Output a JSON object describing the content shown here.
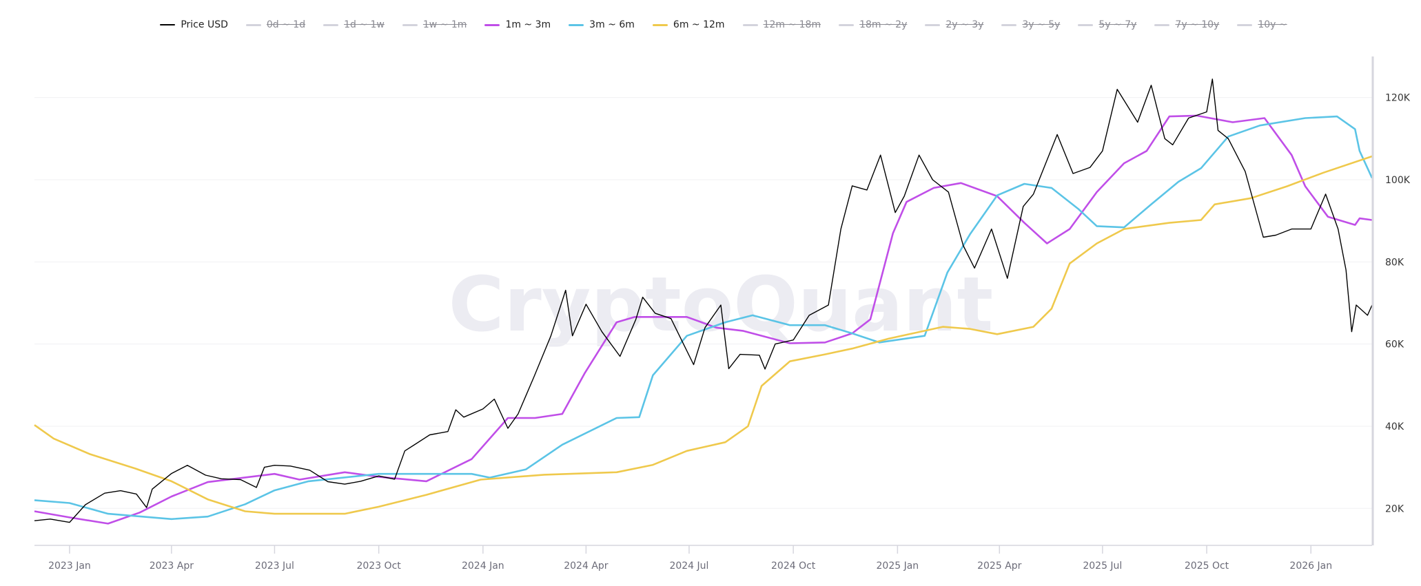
{
  "watermark": "CryptoQuant",
  "chart_data": {
    "type": "line",
    "xlim": [
      "2022-12-01",
      "2026-02-24"
    ],
    "ylim": [
      11000,
      130000
    ],
    "y_axis_side": "right",
    "grid": "horizontal",
    "legend_placement": "top",
    "x_ticks": [
      "2023 Jan",
      "2023 Apr",
      "2023 Jul",
      "2023 Oct",
      "2024 Jan",
      "2024 Apr",
      "2024 Jul",
      "2024 Oct",
      "2025 Jan",
      "2025 Apr",
      "2025 Jul",
      "2025 Oct",
      "2026 Jan"
    ],
    "x_tick_dates": [
      "2023-01-01",
      "2023-04-01",
      "2023-07-01",
      "2023-10-01",
      "2024-01-01",
      "2024-04-01",
      "2024-07-01",
      "2024-10-01",
      "2025-01-01",
      "2025-04-01",
      "2025-07-01",
      "2025-10-01",
      "2026-01-01"
    ],
    "y_ticks": [
      20000,
      40000,
      60000,
      80000,
      100000,
      120000
    ],
    "y_tick_labels": [
      "20K",
      "40K",
      "60K",
      "80K",
      "100K",
      "120K"
    ],
    "legend": [
      {
        "name": "Price USD",
        "color": "#000000",
        "enabled": true
      },
      {
        "name": "0d ~ 1d",
        "color": "#d3d3dc",
        "enabled": false
      },
      {
        "name": "1d ~ 1w",
        "color": "#d3d3dc",
        "enabled": false
      },
      {
        "name": "1w ~ 1m",
        "color": "#d3d3dc",
        "enabled": false
      },
      {
        "name": "1m ~ 3m",
        "color": "#c04ee8",
        "enabled": true
      },
      {
        "name": "3m ~ 6m",
        "color": "#5bc4e6",
        "enabled": true
      },
      {
        "name": "6m ~ 12m",
        "color": "#efc94c",
        "enabled": true
      },
      {
        "name": "12m ~ 18m",
        "color": "#d3d3dc",
        "enabled": false
      },
      {
        "name": "18m ~ 2y",
        "color": "#d3d3dc",
        "enabled": false
      },
      {
        "name": "2y ~ 3y",
        "color": "#d3d3dc",
        "enabled": false
      },
      {
        "name": "3y ~ 5y",
        "color": "#d3d3dc",
        "enabled": false
      },
      {
        "name": "5y ~ 7y",
        "color": "#d3d3dc",
        "enabled": false
      },
      {
        "name": "7y ~ 10y",
        "color": "#d3d3dc",
        "enabled": false
      },
      {
        "name": "10y ~",
        "color": "#d3d3dc",
        "enabled": false
      }
    ],
    "series": [
      {
        "name": "Price USD",
        "color": "#000000",
        "points": [
          [
            "2022-12-01",
            17000
          ],
          [
            "2022-12-15",
            17400
          ],
          [
            "2023-01-01",
            16600
          ],
          [
            "2023-01-15",
            20900
          ],
          [
            "2023-02-01",
            23700
          ],
          [
            "2023-02-15",
            24300
          ],
          [
            "2023-03-01",
            23500
          ],
          [
            "2023-03-10",
            20200
          ],
          [
            "2023-03-15",
            24700
          ],
          [
            "2023-04-01",
            28500
          ],
          [
            "2023-04-15",
            30500
          ],
          [
            "2023-05-01",
            28100
          ],
          [
            "2023-05-15",
            27200
          ],
          [
            "2023-06-01",
            27000
          ],
          [
            "2023-06-15",
            25100
          ],
          [
            "2023-06-22",
            30000
          ],
          [
            "2023-07-01",
            30500
          ],
          [
            "2023-07-15",
            30300
          ],
          [
            "2023-08-01",
            29300
          ],
          [
            "2023-08-17",
            26500
          ],
          [
            "2023-09-01",
            25900
          ],
          [
            "2023-09-15",
            26600
          ],
          [
            "2023-10-01",
            27900
          ],
          [
            "2023-10-15",
            27100
          ],
          [
            "2023-10-24",
            34000
          ],
          [
            "2023-11-01",
            35400
          ],
          [
            "2023-11-15",
            37900
          ],
          [
            "2023-12-01",
            38700
          ],
          [
            "2023-12-08",
            44000
          ],
          [
            "2023-12-15",
            42200
          ],
          [
            "2024-01-01",
            44200
          ],
          [
            "2024-01-11",
            46600
          ],
          [
            "2024-01-23",
            39500
          ],
          [
            "2024-02-01",
            43000
          ],
          [
            "2024-02-15",
            52000
          ],
          [
            "2024-03-01",
            62000
          ],
          [
            "2024-03-14",
            73100
          ],
          [
            "2024-03-20",
            62000
          ],
          [
            "2024-04-01",
            69700
          ],
          [
            "2024-04-15",
            63000
          ],
          [
            "2024-05-01",
            57000
          ],
          [
            "2024-05-15",
            66000
          ],
          [
            "2024-05-21",
            71400
          ],
          [
            "2024-06-01",
            67500
          ],
          [
            "2024-06-15",
            66200
          ],
          [
            "2024-07-05",
            55000
          ],
          [
            "2024-07-15",
            64000
          ],
          [
            "2024-07-29",
            69500
          ],
          [
            "2024-08-05",
            54000
          ],
          [
            "2024-08-15",
            57500
          ],
          [
            "2024-09-01",
            57300
          ],
          [
            "2024-09-06",
            53900
          ],
          [
            "2024-09-15",
            60000
          ],
          [
            "2024-10-01",
            61000
          ],
          [
            "2024-10-15",
            67000
          ],
          [
            "2024-11-01",
            69500
          ],
          [
            "2024-11-12",
            88000
          ],
          [
            "2024-11-22",
            98500
          ],
          [
            "2024-12-05",
            97500
          ],
          [
            "2024-12-17",
            106000
          ],
          [
            "2024-12-30",
            92000
          ],
          [
            "2025-01-07",
            96000
          ],
          [
            "2025-01-20",
            106000
          ],
          [
            "2025-02-01",
            100000
          ],
          [
            "2025-02-15",
            97000
          ],
          [
            "2025-02-28",
            84000
          ],
          [
            "2025-03-10",
            78500
          ],
          [
            "2025-03-25",
            88000
          ],
          [
            "2025-04-08",
            76000
          ],
          [
            "2025-04-22",
            93500
          ],
          [
            "2025-05-01",
            96500
          ],
          [
            "2025-05-22",
            111000
          ],
          [
            "2025-06-05",
            101500
          ],
          [
            "2025-06-20",
            103000
          ],
          [
            "2025-07-01",
            107000
          ],
          [
            "2025-07-14",
            122000
          ],
          [
            "2025-08-01",
            114000
          ],
          [
            "2025-08-13",
            123000
          ],
          [
            "2025-08-25",
            110000
          ],
          [
            "2025-09-01",
            108500
          ],
          [
            "2025-09-15",
            115000
          ],
          [
            "2025-10-01",
            116500
          ],
          [
            "2025-10-06",
            124500
          ],
          [
            "2025-10-11",
            112000
          ],
          [
            "2025-10-20",
            110000
          ],
          [
            "2025-11-04",
            102000
          ],
          [
            "2025-11-20",
            86000
          ],
          [
            "2025-12-01",
            86500
          ],
          [
            "2025-12-15",
            88000
          ],
          [
            "2026-01-01",
            88000
          ],
          [
            "2026-01-14",
            96500
          ],
          [
            "2026-01-25",
            88000
          ],
          [
            "2026-02-01",
            78000
          ],
          [
            "2026-02-06",
            63000
          ],
          [
            "2026-02-10",
            69500
          ],
          [
            "2026-02-20",
            67000
          ],
          [
            "2026-02-24",
            69500
          ]
        ]
      },
      {
        "name": "1m ~ 3m",
        "color": "#c04ee8",
        "points": [
          [
            "2022-12-01",
            19300
          ],
          [
            "2023-01-01",
            17800
          ],
          [
            "2023-02-04",
            16300
          ],
          [
            "2023-03-04",
            19000
          ],
          [
            "2023-04-01",
            22900
          ],
          [
            "2023-05-03",
            26400
          ],
          [
            "2023-07-01",
            28400
          ],
          [
            "2023-07-23",
            27000
          ],
          [
            "2023-09-01",
            28800
          ],
          [
            "2023-10-01",
            27700
          ],
          [
            "2023-11-12",
            26600
          ],
          [
            "2023-12-22",
            32000
          ],
          [
            "2024-01-23",
            42000
          ],
          [
            "2024-02-16",
            42000
          ],
          [
            "2024-03-11",
            43000
          ],
          [
            "2024-03-31",
            53000
          ],
          [
            "2024-04-28",
            65300
          ],
          [
            "2024-05-14",
            66600
          ],
          [
            "2024-06-29",
            66600
          ],
          [
            "2024-07-25",
            64000
          ],
          [
            "2024-08-18",
            63200
          ],
          [
            "2024-09-28",
            60200
          ],
          [
            "2024-10-29",
            60400
          ],
          [
            "2024-11-22",
            62600
          ],
          [
            "2024-12-08",
            66000
          ],
          [
            "2024-12-28",
            87000
          ],
          [
            "2025-01-09",
            94600
          ],
          [
            "2025-02-02",
            98000
          ],
          [
            "2025-02-26",
            99200
          ],
          [
            "2025-03-30",
            96000
          ],
          [
            "2025-04-23",
            89500
          ],
          [
            "2025-05-13",
            84500
          ],
          [
            "2025-06-02",
            88000
          ],
          [
            "2025-06-26",
            97000
          ],
          [
            "2025-07-20",
            104000
          ],
          [
            "2025-08-09",
            107000
          ],
          [
            "2025-08-29",
            115400
          ],
          [
            "2025-09-22",
            115600
          ],
          [
            "2025-10-24",
            114000
          ],
          [
            "2025-11-21",
            115000
          ],
          [
            "2025-12-15",
            106000
          ],
          [
            "2025-12-27",
            98400
          ],
          [
            "2026-01-16",
            91000
          ],
          [
            "2026-02-09",
            89000
          ],
          [
            "2026-02-13",
            90600
          ],
          [
            "2026-02-24",
            90200
          ]
        ]
      },
      {
        "name": "3m ~ 6m",
        "color": "#5bc4e6",
        "points": [
          [
            "2022-12-01",
            22000
          ],
          [
            "2023-01-01",
            21300
          ],
          [
            "2023-02-04",
            18700
          ],
          [
            "2023-04-01",
            17400
          ],
          [
            "2023-05-03",
            18000
          ],
          [
            "2023-06-05",
            21000
          ],
          [
            "2023-07-01",
            24400
          ],
          [
            "2023-07-31",
            26600
          ],
          [
            "2023-10-01",
            28400
          ],
          [
            "2023-11-12",
            28400
          ],
          [
            "2023-12-22",
            28400
          ],
          [
            "2024-01-07",
            27500
          ],
          [
            "2024-02-08",
            29500
          ],
          [
            "2024-03-11",
            35500
          ],
          [
            "2024-04-28",
            42000
          ],
          [
            "2024-05-18",
            42200
          ],
          [
            "2024-05-30",
            52400
          ],
          [
            "2024-06-29",
            62000
          ],
          [
            "2024-08-02",
            65300
          ],
          [
            "2024-08-26",
            67000
          ],
          [
            "2024-09-28",
            64600
          ],
          [
            "2024-10-29",
            64600
          ],
          [
            "2024-11-22",
            62600
          ],
          [
            "2024-12-16",
            60400
          ],
          [
            "2025-01-25",
            62000
          ],
          [
            "2025-02-14",
            77400
          ],
          [
            "2025-03-06",
            86700
          ],
          [
            "2025-03-30",
            96200
          ],
          [
            "2025-04-23",
            99000
          ],
          [
            "2025-05-17",
            98000
          ],
          [
            "2025-06-10",
            92800
          ],
          [
            "2025-06-26",
            88700
          ],
          [
            "2025-07-20",
            88400
          ],
          [
            "2025-08-13",
            94000
          ],
          [
            "2025-09-06",
            99500
          ],
          [
            "2025-09-26",
            102800
          ],
          [
            "2025-10-20",
            110500
          ],
          [
            "2025-11-17",
            113200
          ],
          [
            "2025-12-27",
            115000
          ],
          [
            "2026-01-24",
            115400
          ],
          [
            "2026-02-09",
            112300
          ],
          [
            "2026-02-13",
            107000
          ],
          [
            "2026-02-24",
            100400
          ]
        ]
      },
      {
        "name": "6m ~ 12m",
        "color": "#efc94c",
        "points": [
          [
            "2022-12-01",
            40300
          ],
          [
            "2022-12-18",
            37000
          ],
          [
            "2023-01-19",
            33200
          ],
          [
            "2023-02-28",
            29700
          ],
          [
            "2023-04-01",
            26600
          ],
          [
            "2023-05-03",
            22200
          ],
          [
            "2023-06-05",
            19300
          ],
          [
            "2023-07-01",
            18700
          ],
          [
            "2023-09-01",
            18700
          ],
          [
            "2023-10-01",
            20400
          ],
          [
            "2023-11-12",
            23300
          ],
          [
            "2023-12-30",
            27000
          ],
          [
            "2024-02-24",
            28200
          ],
          [
            "2024-04-28",
            28800
          ],
          [
            "2024-05-30",
            30600
          ],
          [
            "2024-06-29",
            34000
          ],
          [
            "2024-08-02",
            36100
          ],
          [
            "2024-08-22",
            40000
          ],
          [
            "2024-09-03",
            49800
          ],
          [
            "2024-09-28",
            55800
          ],
          [
            "2024-10-29",
            57500
          ],
          [
            "2024-11-22",
            58900
          ],
          [
            "2024-12-24",
            61300
          ],
          [
            "2025-02-10",
            64200
          ],
          [
            "2025-03-06",
            63700
          ],
          [
            "2025-03-30",
            62400
          ],
          [
            "2025-05-01",
            64200
          ],
          [
            "2025-05-17",
            68600
          ],
          [
            "2025-06-02",
            79600
          ],
          [
            "2025-06-26",
            84500
          ],
          [
            "2025-07-20",
            88000
          ],
          [
            "2025-08-29",
            89500
          ],
          [
            "2025-09-26",
            90200
          ],
          [
            "2025-10-08",
            94000
          ],
          [
            "2025-11-09",
            95500
          ],
          [
            "2025-12-11",
            98400
          ],
          [
            "2026-01-12",
            101700
          ],
          [
            "2026-02-24",
            105700
          ]
        ]
      }
    ]
  }
}
